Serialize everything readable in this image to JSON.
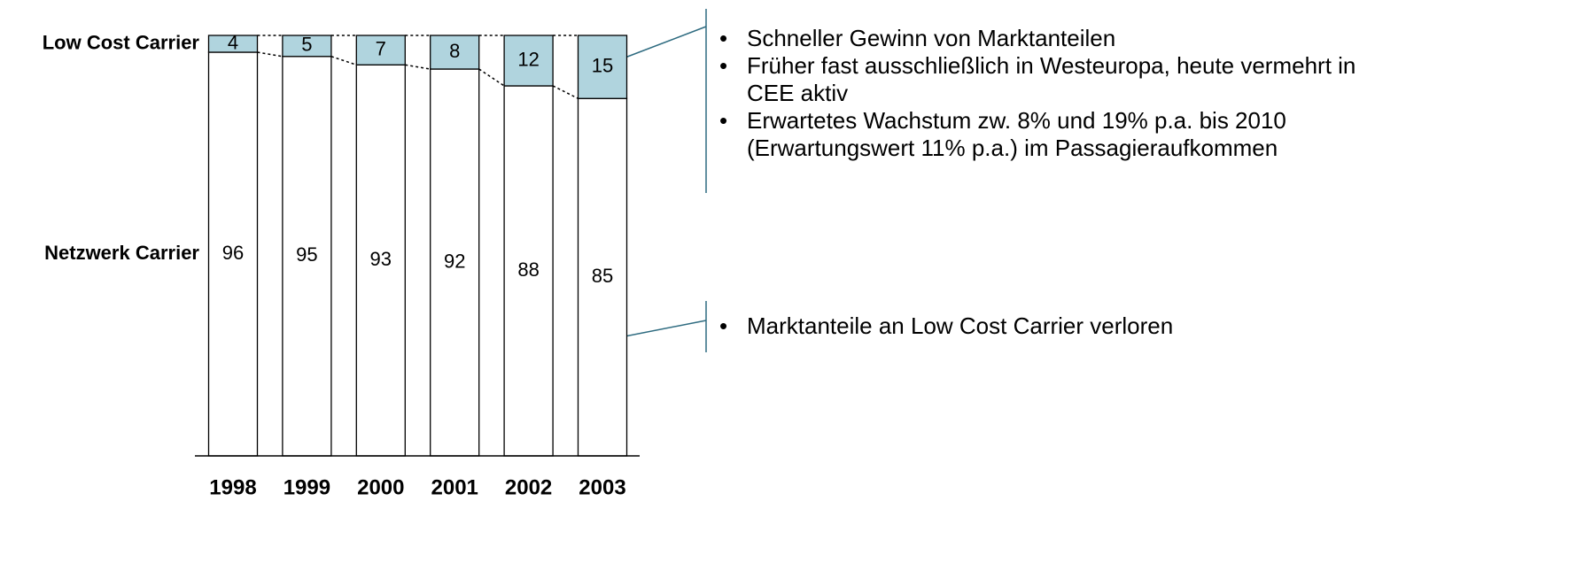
{
  "chart_data": {
    "type": "stacked_bar",
    "categories": [
      "1998",
      "1999",
      "2000",
      "2001",
      "2002",
      "2003"
    ],
    "series": [
      {
        "name": "Netzwerk Carrier",
        "color": "#ffffff",
        "values": [
          96,
          95,
          93,
          92,
          88,
          85
        ]
      },
      {
        "name": "Low Cost Carrier",
        "color": "#b0d4de",
        "values": [
          4,
          5,
          7,
          8,
          12,
          15
        ]
      }
    ],
    "ylim": [
      0,
      100
    ],
    "annotations": [
      {
        "bullets": [
          "Schneller Gewinn von Marktanteilen",
          "Früher fast ausschließlich in Westeuropa, heute vermehrt in CEE aktiv",
          "Erwartetes Wachstum zw. 8% und 19% p.a. bis 2010 (Erwartungswert 11% p.a.) im Passagieraufkommen"
        ]
      },
      {
        "bullets": [
          "Marktanteile an Low Cost Carrier verloren"
        ]
      }
    ]
  }
}
